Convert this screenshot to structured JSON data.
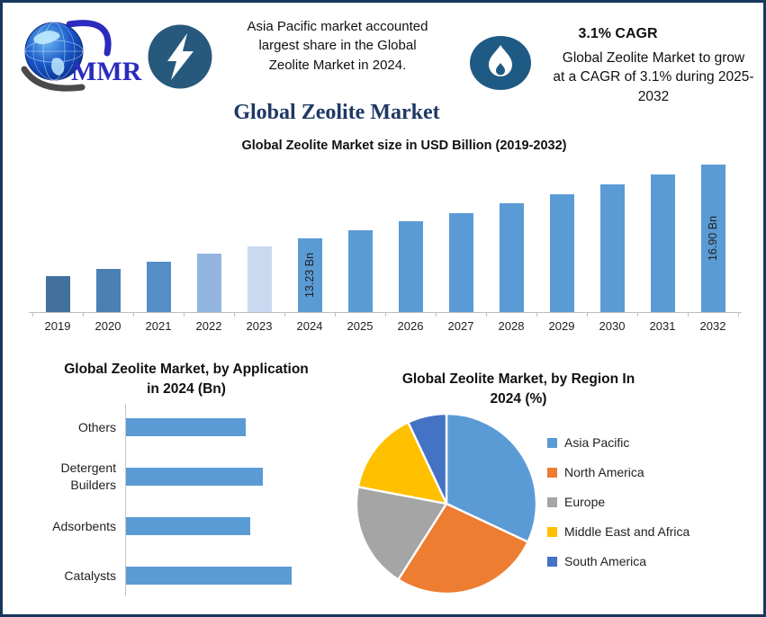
{
  "frame": {
    "border_color": "#17375D",
    "background_color": "#FFFFFF"
  },
  "header": {
    "logo": {
      "text": "MMR",
      "text_color": "#2B2BBE",
      "globe_icon": "blue-globe-with-swoosh"
    },
    "lightning_badge": {
      "icon": "lightning-bolt",
      "circle_color": "#27597C"
    },
    "highlight": {
      "lines": [
        "Asia Pacific market accounted",
        "largest share in the Global",
        "Zeolite Market in 2024."
      ]
    },
    "cagr": {
      "icon": "flame",
      "ellipse_color": "#1F5A84",
      "title": "3.1% CAGR",
      "description_lines": [
        "Global Zeolite Market to grow",
        "at a CAGR of 3.1% during 2025-",
        "2032"
      ]
    }
  },
  "page_title": "Global Zeolite Market",
  "chart_data": [
    {
      "type": "bar",
      "title": "Global Zeolite Market size in USD Billion (2019-2032)",
      "categories": [
        "2019",
        "2020",
        "2021",
        "2022",
        "2023",
        "2024",
        "2025",
        "2026",
        "2027",
        "2028",
        "2029",
        "2030",
        "2031",
        "2032"
      ],
      "values": [
        11.36,
        11.71,
        12.07,
        12.45,
        12.83,
        13.23,
        13.64,
        14.06,
        14.5,
        14.95,
        15.41,
        15.89,
        16.38,
        16.9
      ],
      "unit": "USD Billion",
      "values_estimated_except_labeled": true,
      "data_labels": {
        "2024": "13.23 Bn",
        "2032": "16.90 Bn"
      },
      "bar_colors": [
        "#41719C",
        "#4A80B2",
        "#548EC8",
        "#93B6E1",
        "#C9D9F0",
        "#5B9BD5",
        "#5B9BD5",
        "#5B9BD5",
        "#5B9BD5",
        "#5B9BD5",
        "#5B9BD5",
        "#5B9BD5",
        "#5B9BD5",
        "#5B9BD5"
      ],
      "y_axis_visible": false,
      "x_axis_color": "#BFBFBF",
      "ylim_effective": [
        9.57,
        17.2
      ],
      "grid": false
    },
    {
      "type": "bar",
      "orientation": "horizontal",
      "title": "Global Zeolite Market, by Application in 2024 (Bn)",
      "title_lines": [
        "Global Zeolite Market, by Application",
        "in 2024 (Bn)"
      ],
      "categories": [
        "Others",
        "Detergent Builders",
        "Adsorbents",
        "Catalysts"
      ],
      "values": [
        2.9,
        3.3,
        3.0,
        4.0
      ],
      "values_estimated": true,
      "bar_color": "#5B9BD5",
      "axis_color": "#C6C6C6",
      "grid": false
    },
    {
      "type": "pie",
      "title": "Global Zeolite Market, by Region In 2024 (%)",
      "title_lines": [
        "Global Zeolite Market, by Region In",
        "2024 (%)"
      ],
      "labels": [
        "Asia Pacific",
        "North America",
        "Europe",
        "Middle East and Africa",
        "South America"
      ],
      "values": [
        32,
        27,
        19,
        15,
        7
      ],
      "values_estimated": true,
      "colors": [
        "#5B9BD5",
        "#ED7D31",
        "#A5A5A5",
        "#FFC000",
        "#4472C4"
      ],
      "slice_border_color": "#FFFFFF",
      "start_angle_deg": 0,
      "legend_position": "right"
    }
  ]
}
